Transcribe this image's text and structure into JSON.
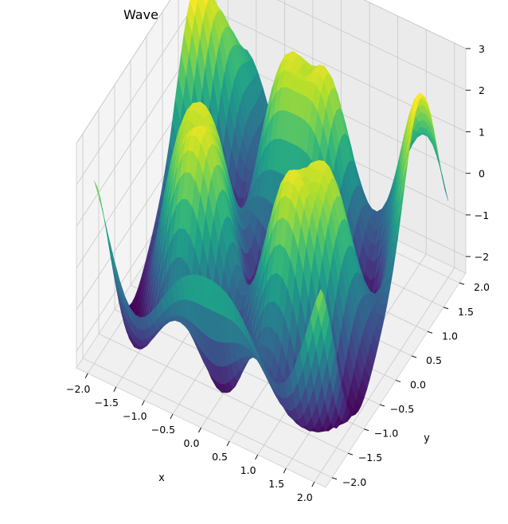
{
  "chart_data": {
    "type": "surface3d",
    "title": "Wave from Three Sources (Triangle) (3D)",
    "xlabel": "x",
    "ylabel": "y",
    "zlabel": "",
    "xlim": [
      -2.2,
      2.2
    ],
    "ylim": [
      -2.2,
      2.2
    ],
    "zlim": [
      -2.4,
      3.0
    ],
    "x_ticks": [
      "−2.0",
      "−1.5",
      "−1.0",
      "−0.5",
      "0.0",
      "0.5",
      "1.0",
      "1.5",
      "2.0"
    ],
    "x_tick_values": [
      -2.0,
      -1.5,
      -1.0,
      -0.5,
      0.0,
      0.5,
      1.0,
      1.5,
      2.0
    ],
    "y_ticks": [
      "−2.0",
      "−1.5",
      "−1.0",
      "−0.5",
      "0.0",
      "0.5",
      "1.0",
      "1.5",
      "2.0"
    ],
    "y_tick_values": [
      -2.0,
      -1.5,
      -1.0,
      -0.5,
      0.0,
      0.5,
      1.0,
      1.5,
      2.0
    ],
    "z_ticks": [
      "−2",
      "−1",
      "0",
      "1",
      "2",
      "3"
    ],
    "z_tick_values": [
      -2,
      -1,
      0,
      1,
      2,
      3
    ],
    "colormap": "viridis",
    "colormap_stops": [
      "#440154",
      "#482878",
      "#3e4a89",
      "#31688e",
      "#26828e",
      "#1f9e89",
      "#35b779",
      "#6ece58",
      "#b5de2b",
      "#fde725"
    ],
    "sources": [
      {
        "x": -1.0,
        "y": -0.6
      },
      {
        "x": 1.0,
        "y": -0.6
      },
      {
        "x": 0.0,
        "y": 1.1
      }
    ],
    "wave_number": 4.0,
    "grid": true,
    "pane_color": "#f2f2f2"
  }
}
